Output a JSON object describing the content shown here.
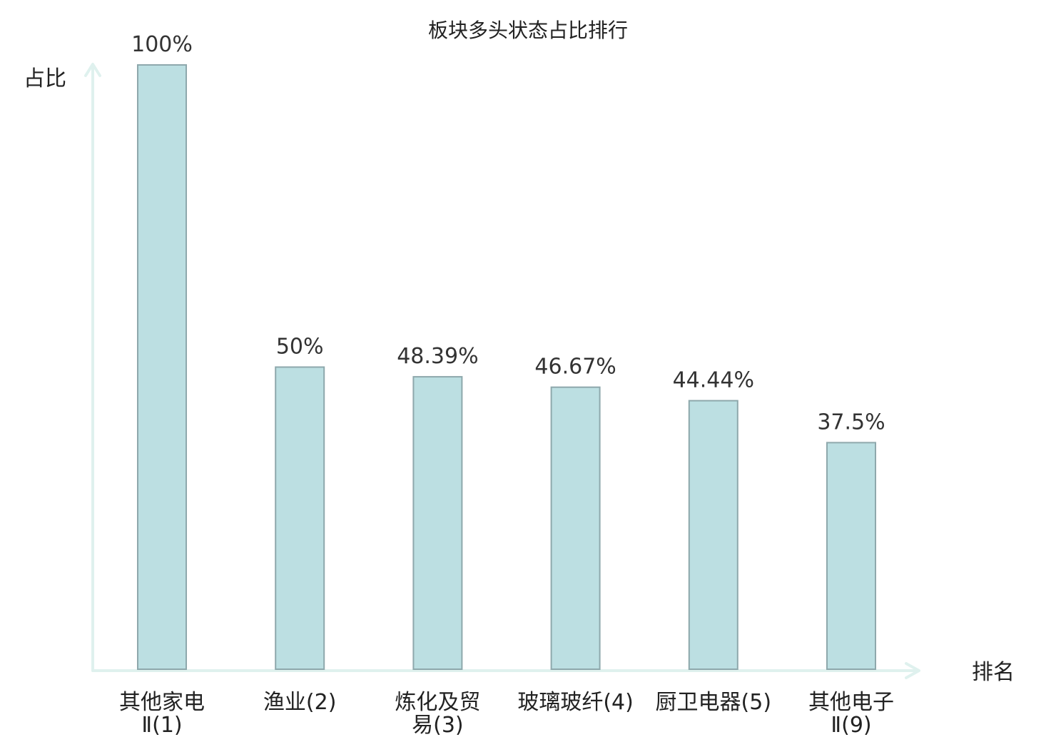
{
  "colors": {
    "bar_fill": "#bcdfe2",
    "bar_stroke": "#8ea8ac",
    "axis": "#dff1ee",
    "text": "#222222",
    "highlight_text": "#e0141e"
  },
  "chart_data": {
    "type": "bar",
    "title": "板块多头状态占比排行",
    "xlabel": "排名",
    "ylabel": "占比",
    "ylim": [
      0,
      100
    ],
    "grid": false,
    "categories": [
      {
        "lines": [
          "其他家电",
          "Ⅱ(1)"
        ],
        "highlight": false
      },
      {
        "lines": [
          "渔业(2)"
        ],
        "highlight": false
      },
      {
        "lines": [
          "炼化及贸",
          "易(3)"
        ],
        "highlight": false
      },
      {
        "lines": [
          "玻璃玻纤(4)"
        ],
        "highlight": false
      },
      {
        "lines": [
          "厨卫电器(5)"
        ],
        "highlight": false
      },
      {
        "lines": [
          "其他电子",
          "Ⅱ(9)"
        ],
        "highlight": true
      }
    ],
    "values": [
      100,
      50,
      48.39,
      46.67,
      44.44,
      37.5
    ],
    "value_labels": [
      "100%",
      "50%",
      "48.39%",
      "46.67%",
      "44.44%",
      "37.5%"
    ]
  }
}
